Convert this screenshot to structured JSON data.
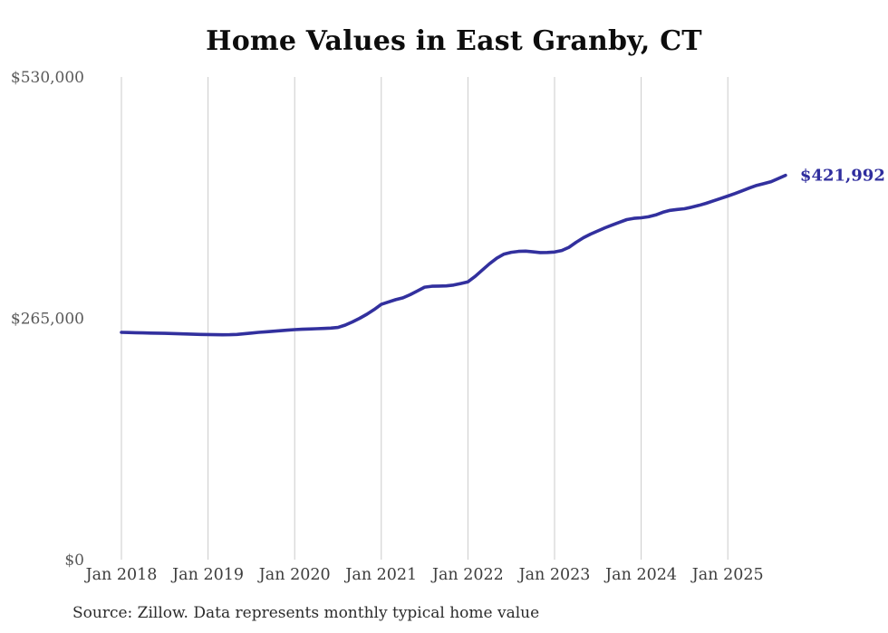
{
  "header": {
    "title": "Home Values in East Granby, CT"
  },
  "footer": {
    "source": "Source: Zillow. Data represents monthly typical home value"
  },
  "annotation": {
    "latest_value_label": "$421,992",
    "latest_value": 421992
  },
  "colors": {
    "line": "#32309e",
    "annotation": "#2f2d9e",
    "gridline": "#cbcbcb",
    "x_label": "#3d3d3d",
    "y_label": "#595959",
    "title": "#0d0d0d",
    "source": "#2b2b2b",
    "background": "#ffffff"
  },
  "chart_data": {
    "type": "line",
    "title": "Home Values in East Granby, CT",
    "xlabel": "",
    "ylabel": "",
    "ylim": [
      0,
      530000
    ],
    "grid": "vertical-only",
    "legend": "none",
    "x_tick_labels": [
      "Jan 2018",
      "Jan 2019",
      "Jan 2020",
      "Jan 2021",
      "Jan 2022",
      "Jan 2023",
      "Jan 2024",
      "Jan 2025"
    ],
    "y_ticks": [
      {
        "value": 0,
        "label": "$0"
      },
      {
        "value": 265000,
        "label": "$265,000"
      },
      {
        "value": 530000,
        "label": "$530,000"
      }
    ],
    "end_label": "$421,992",
    "end_value": 421992,
    "series": [
      {
        "name": "Monthly typical home value",
        "start": "2018-01",
        "frequency": "monthly",
        "values": [
          249600,
          249400,
          249200,
          249000,
          248800,
          248700,
          248500,
          248300,
          248000,
          247800,
          247500,
          247300,
          247200,
          247000,
          246900,
          247000,
          247300,
          248000,
          248800,
          249600,
          250200,
          250800,
          251400,
          252000,
          252600,
          253000,
          253300,
          253600,
          253900,
          254300,
          255000,
          257500,
          261000,
          265000,
          269500,
          274500,
          280300,
          283000,
          285500,
          287500,
          291000,
          295000,
          299200,
          300200,
          300400,
          300600,
          301500,
          303200,
          305100,
          311000,
          318000,
          325000,
          331000,
          335500,
          337500,
          338500,
          338800,
          338000,
          337200,
          337300,
          337800,
          339500,
          343000,
          348500,
          353500,
          357500,
          361000,
          364400,
          367500,
          370500,
          373400,
          374800,
          375400,
          376500,
          378500,
          381400,
          383500,
          384500,
          385300,
          387000,
          389000,
          391300,
          394000,
          396600,
          399200,
          402000,
          405000,
          408100,
          411000,
          413000,
          415100,
          418500,
          421992
        ]
      }
    ]
  }
}
